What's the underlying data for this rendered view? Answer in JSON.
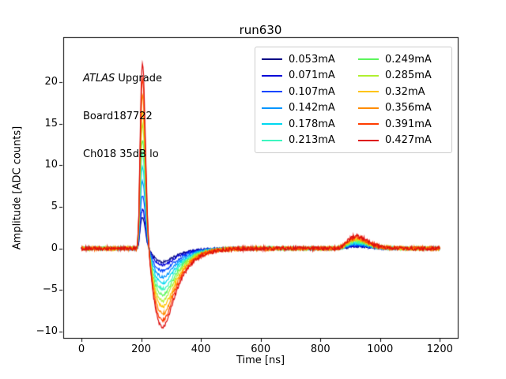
{
  "chart_data": {
    "type": "line",
    "title": "run630",
    "xlabel": "Time [ns]",
    "ylabel": "Amplitude [ADC counts]",
    "xlim": [
      -61,
      1260
    ],
    "ylim": [
      -10.76,
      25.41
    ],
    "grid": false,
    "legend_position": "upper right, 2 columns",
    "xticks": {
      "values": [
        0,
        200,
        400,
        600,
        800,
        1000,
        1200
      ],
      "labels": [
        "0",
        "200",
        "400",
        "600",
        "800",
        "1000",
        "1200"
      ]
    },
    "yticks": {
      "values": [
        -10,
        -5,
        0,
        5,
        10,
        15,
        20
      ],
      "labels": [
        "−10",
        "−5",
        "0",
        "5",
        "10",
        "15",
        "20"
      ]
    },
    "sample_step_ns": 2,
    "noise_adc": {
      "base": 0.13,
      "per_amp": 0.005
    },
    "series": [
      {
        "name": "0.053mA",
        "color": "#000085",
        "peak_amplitude": 3.8,
        "undershoot_min": -1.6,
        "bump_max": 0.26
      },
      {
        "name": "0.071mA",
        "color": "#0000d8",
        "peak_amplitude": 4.7,
        "undershoot_min": -2.0,
        "bump_max": 0.32
      },
      {
        "name": "0.107mA",
        "color": "#0045ff",
        "peak_amplitude": 6.4,
        "undershoot_min": -2.7,
        "bump_max": 0.44
      },
      {
        "name": "0.142mA",
        "color": "#0095ff",
        "peak_amplitude": 8.1,
        "undershoot_min": -3.4,
        "bump_max": 0.55
      },
      {
        "name": "0.178mA",
        "color": "#00d8f0",
        "peak_amplitude": 9.8,
        "undershoot_min": -4.2,
        "bump_max": 0.67
      },
      {
        "name": "0.213mA",
        "color": "#3cf6c0",
        "peak_amplitude": 11.5,
        "undershoot_min": -4.9,
        "bump_max": 0.78
      },
      {
        "name": "0.249mA",
        "color": "#5cf65c",
        "peak_amplitude": 13.2,
        "undershoot_min": -5.6,
        "bump_max": 0.9
      },
      {
        "name": "0.285mA",
        "color": "#b0f030",
        "peak_amplitude": 14.9,
        "undershoot_min": -6.3,
        "bump_max": 1.01
      },
      {
        "name": "0.32mA",
        "color": "#ffc400",
        "peak_amplitude": 16.6,
        "undershoot_min": -7.1,
        "bump_max": 1.13
      },
      {
        "name": "0.356mA",
        "color": "#ff8c00",
        "peak_amplitude": 18.5,
        "undershoot_min": -7.9,
        "bump_max": 1.26
      },
      {
        "name": "0.391mA",
        "color": "#ff3c00",
        "peak_amplitude": 20.4,
        "undershoot_min": -8.7,
        "bump_max": 1.39
      },
      {
        "name": "0.427mA",
        "color": "#dd0e0e",
        "peak_amplitude": 22.2,
        "undershoot_min": -9.4,
        "bump_max": 1.51
      }
    ],
    "waveform_landmarks_ns": {
      "baseline_start": 0,
      "peak": 205,
      "zero_crossing": 226,
      "undershoot_min": 272,
      "recovered": 500,
      "bump_peak": 915,
      "end": 1200
    },
    "base_waveform_shape": [
      [
        0,
        0
      ],
      [
        150,
        0
      ],
      [
        185,
        0
      ],
      [
        188,
        0.03
      ],
      [
        192,
        0.18
      ],
      [
        196,
        0.55
      ],
      [
        200,
        0.88
      ],
      [
        203,
        0.99
      ],
      [
        205,
        1.0
      ],
      [
        208,
        0.93
      ],
      [
        212,
        0.72
      ],
      [
        216,
        0.45
      ],
      [
        220,
        0.22
      ],
      [
        224,
        0.06
      ],
      [
        228,
        -0.05
      ],
      [
        233,
        -0.14
      ],
      [
        240,
        -0.245
      ],
      [
        248,
        -0.33
      ],
      [
        256,
        -0.385
      ],
      [
        264,
        -0.415
      ],
      [
        272,
        -0.425
      ],
      [
        280,
        -0.415
      ],
      [
        290,
        -0.375
      ],
      [
        300,
        -0.32
      ],
      [
        312,
        -0.26
      ],
      [
        325,
        -0.2
      ],
      [
        340,
        -0.148
      ],
      [
        358,
        -0.103
      ],
      [
        378,
        -0.068
      ],
      [
        400,
        -0.042
      ],
      [
        425,
        -0.024
      ],
      [
        455,
        -0.012
      ],
      [
        490,
        -0.005
      ],
      [
        530,
        -0.002
      ],
      [
        580,
        0
      ],
      [
        850,
        0
      ],
      [
        862,
        0.004
      ],
      [
        875,
        0.015
      ],
      [
        888,
        0.035
      ],
      [
        900,
        0.055
      ],
      [
        912,
        0.066
      ],
      [
        925,
        0.068
      ],
      [
        940,
        0.058
      ],
      [
        958,
        0.04
      ],
      [
        978,
        0.022
      ],
      [
        1000,
        0.011
      ],
      [
        1030,
        0.004
      ],
      [
        1070,
        0.001
      ],
      [
        1120,
        0
      ],
      [
        1200,
        0
      ]
    ]
  },
  "annotation": {
    "line1_italic": "ATLAS",
    "line1_rest": " Upgrade",
    "line2": "Board187722",
    "line3": "Ch018 35dB lo"
  }
}
